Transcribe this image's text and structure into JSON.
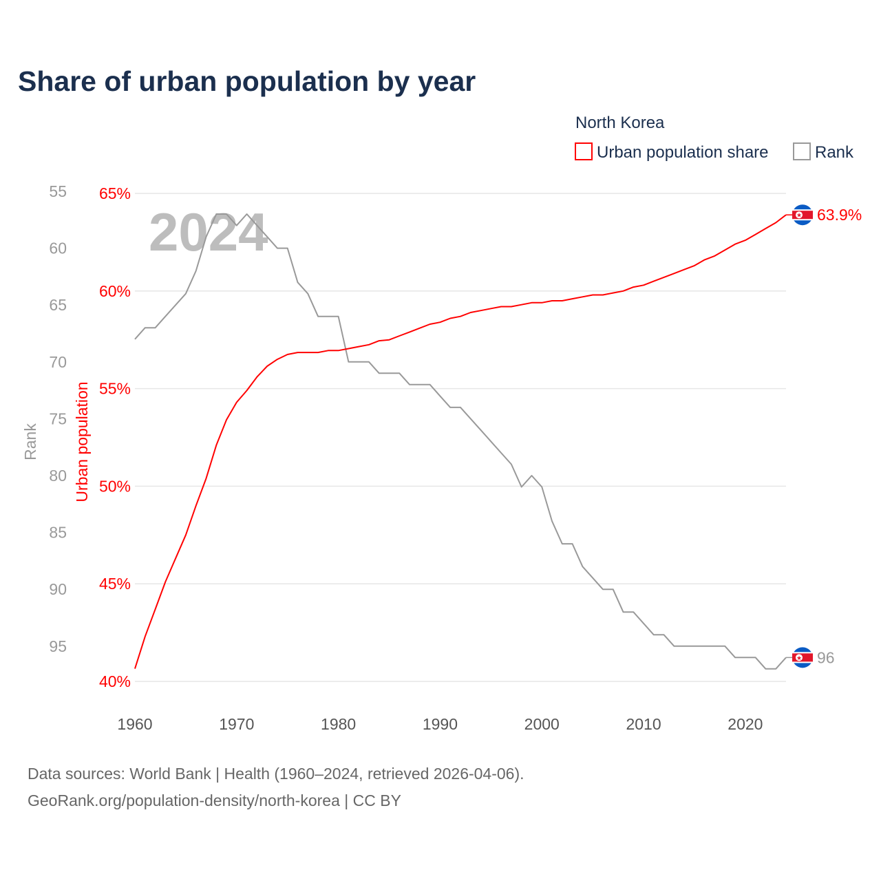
{
  "chart_data": {
    "type": "line",
    "title": "Share of urban population by year",
    "legend_title": "North Korea",
    "legend_placement": "top-right",
    "xlabel": "",
    "ylabel_left_outer": "Rank",
    "ylabel_left_inner": "Urban population",
    "xlim": [
      1960,
      2024
    ],
    "x_ticks": [
      "1960",
      "1970",
      "1980",
      "1990",
      "2000",
      "2010",
      "2020"
    ],
    "pct_ylim": [
      40,
      65
    ],
    "pct_ticks": [
      "40%",
      "45%",
      "50%",
      "55%",
      "60%",
      "65%"
    ],
    "rank_ylim_inverted": [
      55,
      97
    ],
    "rank_ticks": [
      "55",
      "60",
      "65",
      "70",
      "75",
      "80",
      "85",
      "90",
      "95"
    ],
    "grid": true,
    "watermark_year": "2024",
    "x": [
      1960,
      1961,
      1962,
      1963,
      1964,
      1965,
      1966,
      1967,
      1968,
      1969,
      1970,
      1971,
      1972,
      1973,
      1974,
      1975,
      1976,
      1977,
      1978,
      1979,
      1980,
      1981,
      1982,
      1983,
      1984,
      1985,
      1986,
      1987,
      1988,
      1989,
      1990,
      1991,
      1992,
      1993,
      1994,
      1995,
      1996,
      1997,
      1998,
      1999,
      2000,
      2001,
      2002,
      2003,
      2004,
      2005,
      2006,
      2007,
      2008,
      2009,
      2010,
      2011,
      2012,
      2013,
      2014,
      2015,
      2016,
      2017,
      2018,
      2019,
      2020,
      2021,
      2022,
      2023,
      2024
    ],
    "series": [
      {
        "name": "Urban population share",
        "axis": "pct",
        "color": "#ff0000",
        "end_label": "63.9%",
        "values": [
          40.65,
          42.3,
          43.7,
          45.1,
          46.3,
          47.5,
          49.0,
          50.4,
          52.1,
          53.4,
          54.3,
          54.9,
          55.6,
          56.15,
          56.5,
          56.75,
          56.85,
          56.85,
          56.85,
          56.95,
          56.95,
          57.05,
          57.15,
          57.25,
          57.45,
          57.5,
          57.7,
          57.9,
          58.1,
          58.3,
          58.4,
          58.6,
          58.7,
          58.9,
          59.0,
          59.1,
          59.2,
          59.2,
          59.3,
          59.4,
          59.4,
          59.5,
          59.5,
          59.6,
          59.7,
          59.8,
          59.8,
          59.9,
          60.0,
          60.2,
          60.3,
          60.5,
          60.7,
          60.9,
          61.1,
          61.3,
          61.6,
          61.8,
          62.1,
          62.4,
          62.6,
          62.9,
          63.2,
          63.5,
          63.9
        ]
      },
      {
        "name": "Rank",
        "axis": "rank",
        "color": "#999999",
        "end_label": "96",
        "values": [
          68,
          67,
          67,
          66,
          65,
          64,
          62,
          59,
          57,
          57,
          58,
          57,
          58,
          59,
          60,
          60,
          63,
          64,
          66,
          66,
          66,
          70,
          70,
          70,
          71,
          71,
          71,
          72,
          72,
          72,
          73,
          74,
          74,
          75,
          76,
          77,
          78,
          79,
          81,
          80,
          81,
          84,
          86,
          86,
          88,
          89,
          90,
          90,
          92,
          92,
          93,
          94,
          94,
          95,
          95,
          95,
          95,
          95,
          95,
          96,
          96,
          96,
          97,
          97,
          96
        ]
      }
    ]
  },
  "footer": {
    "line1": "Data sources: World Bank | Health (1960–2024, retrieved 2026-04-06).",
    "line2": "GeoRank.org/population-density/north-korea | CC BY"
  }
}
